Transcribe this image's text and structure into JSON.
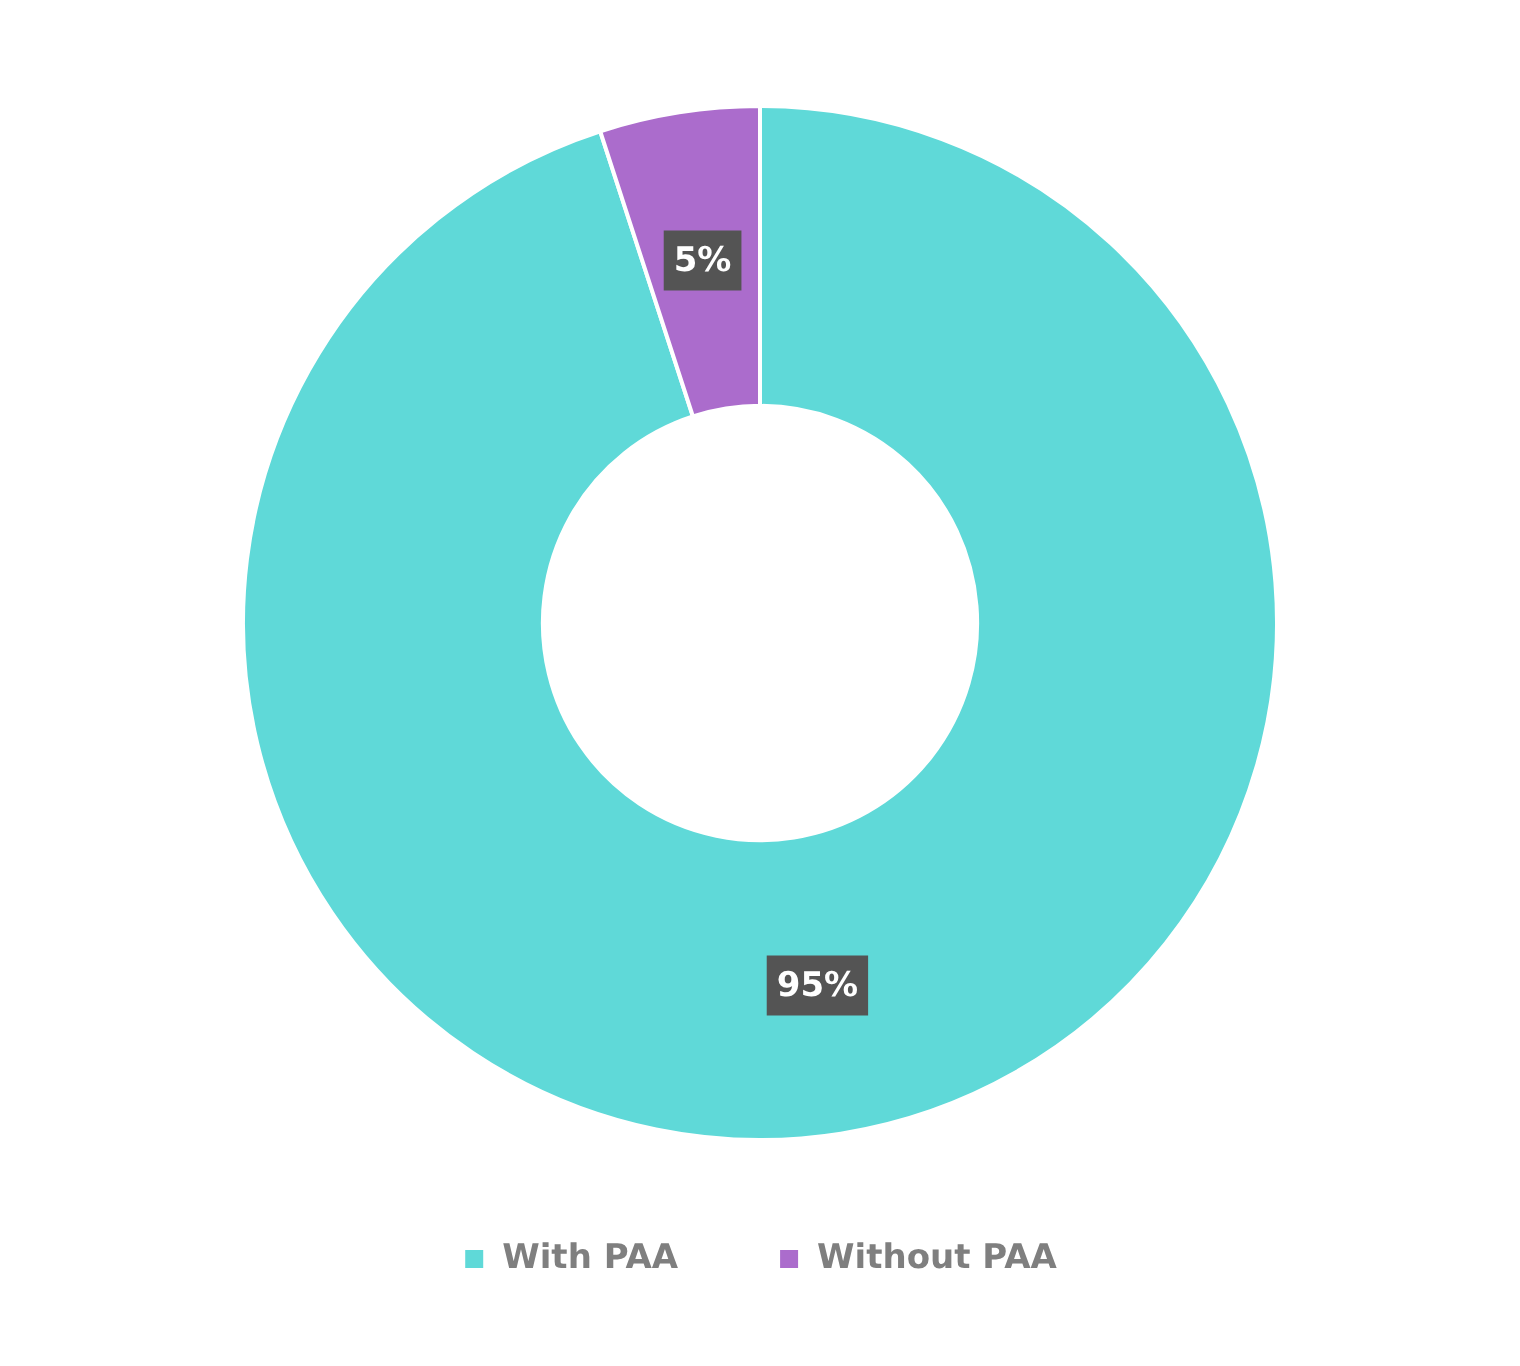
{
  "chart_data": {
    "type": "donut",
    "categories": [
      "With PAA",
      "Without PAA"
    ],
    "values": [
      95,
      5
    ],
    "colors": [
      "#5fd9d8",
      "#ab6ccc"
    ],
    "value_labels": [
      "95%",
      "5%"
    ],
    "legend": "bottom"
  }
}
